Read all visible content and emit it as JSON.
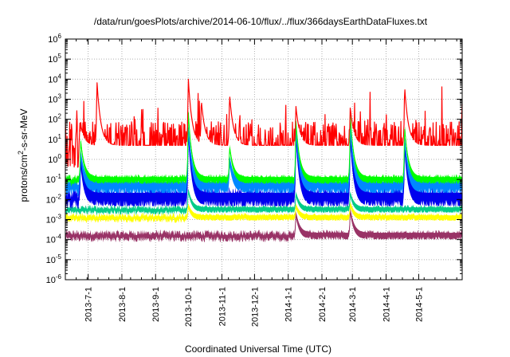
{
  "chart_data": {
    "type": "line",
    "title": "/data/run/goesPlots/archive/2014-06-10/flux/../flux/366daysEarthDataFluxes.txt",
    "xlabel": "Coordinated Universal Time (UTC)",
    "ylabel": "protons/cm2-s-sr-MeV",
    "ylabel_parts": {
      "pre": "protons/cm",
      "sup": "2",
      "post": "-s-sr-MeV"
    },
    "yscale": "log",
    "ylim": [
      1e-06,
      1000000.0
    ],
    "xlim": [
      "2013-06-10",
      "2014-06-10"
    ],
    "grid": true,
    "legend": "none",
    "x_ticks": [
      "2013-7-1",
      "2013-8-1",
      "2013-9-1",
      "2013-10-1",
      "2013-11-1",
      "2013-12-1",
      "2014-1-1",
      "2014-2-1",
      "2014-3-1",
      "2014-4-1",
      "2014-5-1"
    ],
    "y_ticks": [
      {
        "base": "10",
        "exp": "-6"
      },
      {
        "base": "10",
        "exp": "-5"
      },
      {
        "base": "10",
        "exp": "-4"
      },
      {
        "base": "10",
        "exp": "-3"
      },
      {
        "base": "10",
        "exp": "-2"
      },
      {
        "base": "10",
        "exp": "-1"
      },
      {
        "base": "10",
        "exp": "0"
      },
      {
        "base": "10",
        "exp": "1"
      },
      {
        "base": "10",
        "exp": "2"
      },
      {
        "base": "10",
        "exp": "3"
      },
      {
        "base": "10",
        "exp": "4"
      },
      {
        "base": "10",
        "exp": "5"
      },
      {
        "base": "10",
        "exp": "6"
      }
    ],
    "events": [
      "2013-06-23",
      "2013-09-30",
      "2013-10-28",
      "2013-11-07",
      "2014-01-07",
      "2014-02-20",
      "2014-02-27",
      "2014-04-18"
    ],
    "series": [
      {
        "color": "#ff0000",
        "baseline": 5,
        "spread": 1.2,
        "peaks": [
          {
            "date": "2013-06-24",
            "value": 60
          },
          {
            "date": "2013-07-09",
            "value": 10000
          },
          {
            "date": "2013-10-01",
            "value": 14000
          },
          {
            "date": "2013-10-13",
            "value": 1000
          },
          {
            "date": "2013-11-08",
            "value": 2000
          },
          {
            "date": "2014-01-08",
            "value": 500
          },
          {
            "date": "2014-02-27",
            "value": 400
          },
          {
            "date": "2014-04-18",
            "value": 5000
          }
        ]
      },
      {
        "color": "#00ff00",
        "baseline": 0.09,
        "spread": 0.15,
        "peaks": [
          {
            "date": "2013-06-24",
            "value": 10
          },
          {
            "date": "2013-10-01",
            "value": 300
          },
          {
            "date": "2013-11-08",
            "value": 5
          },
          {
            "date": "2014-01-08",
            "value": 100
          },
          {
            "date": "2014-02-27",
            "value": 200
          },
          {
            "date": "2014-04-18",
            "value": 50
          }
        ]
      },
      {
        "color": "#0088ff",
        "baseline": 0.04,
        "spread": 0.25,
        "peaks": [
          {
            "date": "2013-06-24",
            "value": 2
          },
          {
            "date": "2013-10-01",
            "value": 50
          },
          {
            "date": "2013-11-08",
            "value": 1
          },
          {
            "date": "2014-01-08",
            "value": 30
          },
          {
            "date": "2014-02-27",
            "value": 40
          },
          {
            "date": "2014-04-18",
            "value": 10
          }
        ]
      },
      {
        "color": "#0000ee",
        "baseline": 0.01,
        "spread": 0.3,
        "peaks": [
          {
            "date": "2013-06-24",
            "value": 1
          },
          {
            "date": "2013-10-01",
            "value": 30
          },
          {
            "date": "2014-01-08",
            "value": 20
          },
          {
            "date": "2014-02-27",
            "value": 15
          },
          {
            "date": "2014-04-18",
            "value": 5
          }
        ]
      },
      {
        "color": "#00cc88",
        "baseline": 0.003,
        "spread": 0.12,
        "peaks": [
          {
            "date": "2013-10-01",
            "value": 0.03
          },
          {
            "date": "2014-01-08",
            "value": 0.02
          },
          {
            "date": "2014-02-27",
            "value": 0.02
          }
        ]
      },
      {
        "color": "#ffff00",
        "baseline": 0.0012,
        "spread": 0.12,
        "peaks": [
          {
            "date": "2013-10-01",
            "value": 0.005
          },
          {
            "date": "2014-01-08",
            "value": 0.005
          },
          {
            "date": "2014-02-27",
            "value": 0.006
          }
        ]
      },
      {
        "color": "#993366",
        "baseline": 0.00015,
        "spread": 0.15,
        "peaks": [
          {
            "date": "2014-01-08",
            "value": 0.002
          },
          {
            "date": "2014-02-27",
            "value": 0.003
          }
        ]
      }
    ]
  }
}
